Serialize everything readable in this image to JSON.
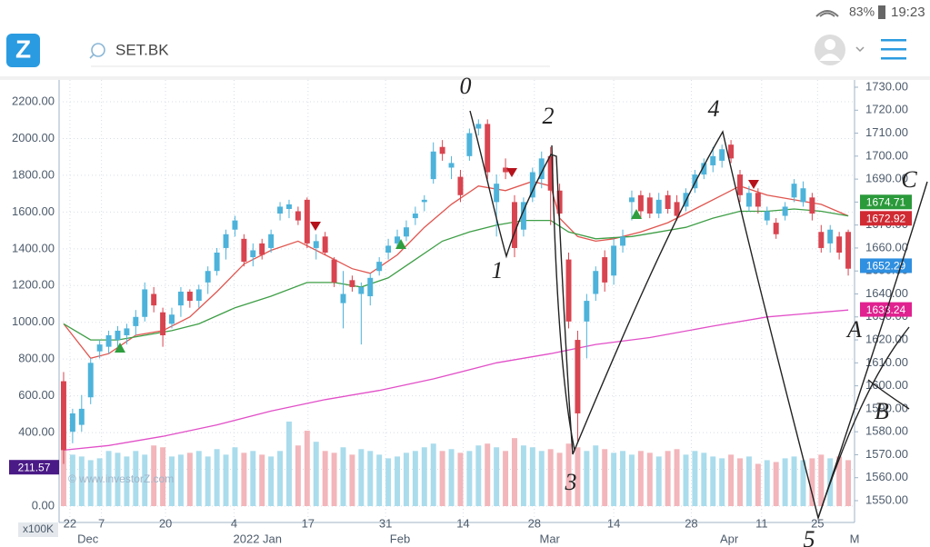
{
  "status_bar": {
    "battery": "83%",
    "time": "19:23"
  },
  "app_bar": {
    "logo": "Z",
    "search": "SET.BK"
  },
  "chart_data": {
    "type": "candlestick",
    "watermark": "© www.investorZ.com",
    "volume_unit": "x100K",
    "xlim": [
      -0.5,
      87.7
    ],
    "xticks": [
      {
        "value": 0.7,
        "label": "22"
      },
      {
        "value": 4.2,
        "label": "7"
      },
      {
        "value": 11.3,
        "label": "20"
      },
      {
        "value": 18.9,
        "label": "4"
      },
      {
        "value": 27.1,
        "label": "17"
      },
      {
        "value": 35.7,
        "label": "31"
      },
      {
        "value": 44.3,
        "label": "14"
      },
      {
        "value": 52.2,
        "label": "28"
      },
      {
        "value": 61,
        "label": "14"
      },
      {
        "value": 69.6,
        "label": "28"
      },
      {
        "value": 77.4,
        "label": "11"
      },
      {
        "value": 83.6,
        "label": "25"
      }
    ],
    "month_labels": [
      {
        "value": 2.7,
        "label": "Dec"
      },
      {
        "value": 21.5,
        "label": "2022 Jan"
      },
      {
        "value": 37.3,
        "label": "Feb"
      },
      {
        "value": 53.9,
        "label": "Mar"
      },
      {
        "value": 73.8,
        "label": "Apr"
      },
      {
        "value": 87.7,
        "label": "M"
      }
    ],
    "ylim": [
      0,
      2200
    ],
    "yticks": [
      {
        "value": 0,
        "label": "0.00"
      },
      {
        "value": 200,
        "label": "200.00"
      },
      {
        "value": 400,
        "label": "400.00"
      },
      {
        "value": 600,
        "label": "600.00"
      },
      {
        "value": 800,
        "label": "800.00"
      },
      {
        "value": 1000,
        "label": "1000.00"
      },
      {
        "value": 1200,
        "label": "1200.00"
      },
      {
        "value": 1400,
        "label": "1400.00"
      },
      {
        "value": 1600,
        "label": "1600.00"
      },
      {
        "value": 1800,
        "label": "1800.00"
      },
      {
        "value": 2000,
        "label": "2000.00"
      },
      {
        "value": 2200,
        "label": "2200.00"
      }
    ],
    "y2lim": [
      1550,
      1730
    ],
    "y2ticks": [
      {
        "value": 1550,
        "label": "1550.00"
      },
      {
        "value": 1560,
        "label": "1560.00"
      },
      {
        "value": 1570,
        "label": "1570.00"
      },
      {
        "value": 1580,
        "label": "1580.00"
      },
      {
        "value": 1590,
        "label": "1590.00"
      },
      {
        "value": 1600,
        "label": "1600.00"
      },
      {
        "value": 1610,
        "label": "1610.00"
      },
      {
        "value": 1620,
        "label": "1620.00"
      },
      {
        "value": 1630,
        "label": "1630.00"
      },
      {
        "value": 1640,
        "label": "1640.00"
      },
      {
        "value": 1650,
        "label": "1650.00"
      },
      {
        "value": 1660,
        "label": "1660.00"
      },
      {
        "value": 1670,
        "label": "1670.00"
      },
      {
        "value": 1680,
        "label": "1680.00"
      },
      {
        "value": 1690,
        "label": "1690.00"
      },
      {
        "value": 1700,
        "label": "1700.00"
      },
      {
        "value": 1710,
        "label": "1710.00"
      },
      {
        "value": 1720,
        "label": "1720.00"
      },
      {
        "value": 1730,
        "label": "1730.00"
      }
    ],
    "grid": true,
    "up_color": "#4db3da",
    "down_color": "#d8444f",
    "up_volume_color": "#aadcec",
    "down_volume_color": "#f2b6bb",
    "ohlc": [
      [
        1602,
        1606,
        1566,
        1572
      ],
      [
        1580,
        1590,
        1575,
        1588
      ],
      [
        1583,
        1596,
        1580,
        1590
      ],
      [
        1595,
        1612,
        1592,
        1610
      ],
      [
        1615,
        1620,
        1612,
        1618
      ],
      [
        1617,
        1624,
        1614,
        1622
      ],
      [
        1620,
        1626,
        1616,
        1624
      ],
      [
        1622,
        1627,
        1618,
        1625
      ],
      [
        1626,
        1633,
        1622,
        1630
      ],
      [
        1630,
        1645,
        1628,
        1642
      ],
      [
        1640,
        1643,
        1632,
        1635
      ],
      [
        1632,
        1634,
        1617,
        1622
      ],
      [
        1627,
        1634,
        1625,
        1631
      ],
      [
        1635,
        1643,
        1630,
        1641
      ],
      [
        1641,
        1642,
        1634,
        1637
      ],
      [
        1637,
        1644,
        1634,
        1642
      ],
      [
        1645,
        1652,
        1640,
        1650
      ],
      [
        1650,
        1660,
        1648,
        1658
      ],
      [
        1660,
        1668,
        1655,
        1666
      ],
      [
        1668,
        1674,
        1665,
        1672
      ],
      [
        1664,
        1666,
        1652,
        1654
      ],
      [
        1656,
        1662,
        1652,
        1659
      ],
      [
        1662,
        1664,
        1655,
        1657
      ],
      [
        1660,
        1668,
        1658,
        1666
      ],
      [
        1675,
        1680,
        1672,
        1678
      ],
      [
        1677,
        1681,
        1673,
        1679
      ],
      [
        1676,
        1678,
        1670,
        1672
      ],
      [
        1681,
        1682,
        1660,
        1662
      ],
      [
        1660,
        1666,
        1655,
        1663
      ],
      [
        1665,
        1667,
        1657,
        1658
      ],
      [
        1655,
        1656,
        1643,
        1645
      ],
      [
        1636,
        1650,
        1625,
        1640
      ],
      [
        1646,
        1648,
        1641,
        1643
      ],
      [
        1640,
        1645,
        1618,
        1643
      ],
      [
        1639,
        1649,
        1635,
        1647
      ],
      [
        1650,
        1656,
        1648,
        1654
      ],
      [
        1658,
        1664,
        1655,
        1661
      ],
      [
        1662,
        1668,
        1660,
        1665
      ],
      [
        1665,
        1672,
        1663,
        1669
      ],
      [
        1673,
        1678,
        1670,
        1675
      ],
      [
        1680,
        1683,
        1676,
        1681
      ],
      [
        1690,
        1706,
        1688,
        1702
      ],
      [
        1704,
        1707,
        1698,
        1701
      ],
      [
        1695,
        1700,
        1690,
        1697
      ],
      [
        1691,
        1694,
        1680,
        1683
      ],
      [
        1700,
        1712,
        1698,
        1710
      ],
      [
        1712,
        1716,
        1709,
        1714
      ],
      [
        1714,
        1716,
        1690,
        1693
      ],
      [
        1680,
        1692,
        1665,
        1688
      ],
      [
        1695,
        1699,
        1690,
        1693
      ],
      [
        1680,
        1683,
        1656,
        1660
      ],
      [
        1668,
        1682,
        1665,
        1680
      ],
      [
        1682,
        1695,
        1680,
        1693
      ],
      [
        1690,
        1702,
        1686,
        1699
      ],
      [
        1700,
        1704,
        1670,
        1685
      ],
      [
        1685,
        1688,
        1670,
        1675
      ],
      [
        1655,
        1658,
        1625,
        1628
      ],
      [
        1620,
        1624,
        1575,
        1588
      ],
      [
        1628,
        1640,
        1612,
        1637
      ],
      [
        1640,
        1652,
        1637,
        1650
      ],
      [
        1656,
        1659,
        1641,
        1645
      ],
      [
        1648,
        1664,
        1644,
        1661
      ],
      [
        1661,
        1668,
        1658,
        1665
      ],
      [
        1680,
        1685,
        1672,
        1682
      ],
      [
        1683,
        1685,
        1673,
        1676
      ],
      [
        1682,
        1684,
        1673,
        1675
      ],
      [
        1675,
        1684,
        1673,
        1681
      ],
      [
        1683,
        1685,
        1675,
        1677
      ],
      [
        1680,
        1683,
        1672,
        1674
      ],
      [
        1678,
        1686,
        1676,
        1684
      ],
      [
        1686,
        1694,
        1684,
        1692
      ],
      [
        1692,
        1699,
        1690,
        1697
      ],
      [
        1696,
        1704,
        1693,
        1700
      ],
      [
        1698,
        1705,
        1695,
        1703
      ],
      [
        1705,
        1707,
        1697,
        1699
      ],
      [
        1692,
        1694,
        1680,
        1683
      ],
      [
        1678,
        1687,
        1676,
        1684
      ],
      [
        1684,
        1686,
        1675,
        1678
      ],
      [
        1672,
        1678,
        1670,
        1676
      ],
      [
        1671,
        1673,
        1664,
        1666
      ],
      [
        1674,
        1680,
        1672,
        1678
      ],
      [
        1682,
        1690,
        1680,
        1688
      ],
      [
        1680,
        1689,
        1678,
        1686
      ],
      [
        1682,
        1684,
        1672,
        1675
      ],
      [
        1667,
        1670,
        1658,
        1660
      ],
      [
        1662,
        1670,
        1658,
        1668
      ],
      [
        1665,
        1667,
        1655,
        1658
      ],
      [
        1667,
        1668,
        1648,
        1651
      ]
    ],
    "volume": [
      390,
      280,
      270,
      250,
      260,
      300,
      290,
      270,
      300,
      280,
      330,
      320,
      270,
      280,
      290,
      300,
      270,
      310,
      280,
      320,
      290,
      300,
      280,
      270,
      300,
      460,
      330,
      410,
      350,
      300,
      290,
      320,
      280,
      310,
      300,
      280,
      260,
      270,
      290,
      300,
      320,
      340,
      300,
      310,
      290,
      300,
      330,
      340,
      320,
      300,
      370,
      330,
      320,
      300,
      310,
      290,
      340,
      320,
      300,
      330,
      310,
      290,
      300,
      280,
      300,
      290,
      270,
      300,
      310,
      280,
      300,
      290,
      270,
      260,
      280,
      260,
      270,
      230,
      250,
      240,
      260,
      270,
      250,
      260,
      280,
      260,
      270,
      250
    ],
    "lines": [
      {
        "color": "#e0554f",
        "axis": "y2",
        "x": [
          0,
          3,
          5,
          8,
          11,
          14,
          17,
          20,
          23,
          26,
          29,
          32,
          34,
          37,
          40,
          43,
          46,
          49,
          52,
          54,
          55,
          57,
          59,
          61,
          64,
          67,
          70,
          73,
          75,
          78,
          81,
          84,
          87
        ],
        "values": [
          1627,
          1612,
          1614,
          1622,
          1624,
          1630,
          1641,
          1653,
          1659,
          1663,
          1657,
          1651,
          1649,
          1657,
          1669,
          1679,
          1687,
          1685,
          1689,
          1687,
          1673,
          1665,
          1663,
          1664,
          1667,
          1671,
          1677,
          1683,
          1687,
          1683,
          1681,
          1679,
          1674
        ]
      },
      {
        "color": "#3e9e46",
        "axis": "y2",
        "x": [
          0,
          3,
          6,
          9,
          12,
          15,
          19,
          23,
          27,
          30,
          33,
          36,
          39,
          42,
          45,
          48,
          51,
          54,
          56,
          59,
          63,
          66,
          69,
          72,
          75,
          78,
          81,
          84,
          87
        ],
        "values": [
          1627,
          1620,
          1620,
          1622,
          1624,
          1627,
          1634,
          1639,
          1645,
          1645,
          1643,
          1647,
          1655,
          1663,
          1667,
          1670,
          1672,
          1672,
          1667,
          1664,
          1665,
          1667,
          1669,
          1673,
          1676,
          1676,
          1677,
          1676,
          1674
        ]
      },
      {
        "color": "#e24fc8",
        "axis": "y2",
        "x": [
          0,
          5,
          11,
          17,
          23,
          29,
          35,
          41,
          48,
          54,
          59,
          65,
          72,
          78,
          84,
          87
        ],
        "values": [
          1572,
          1574,
          1578,
          1583,
          1589,
          1594,
          1598,
          1603,
          1610,
          1614,
          1618,
          1621,
          1626,
          1630,
          1632,
          1633
        ]
      }
    ],
    "price_labels": [
      {
        "value": 1674.71,
        "color": "#2b9a3b"
      },
      {
        "value": 1672.92,
        "color": "#d02a33"
      },
      {
        "value": 1652.29,
        "color": "#2f8fe0"
      },
      {
        "value": 1633.24,
        "color": "#e0218f"
      }
    ],
    "volume_label": {
      "value": 211.57,
      "color": "#4a1a86"
    },
    "annotations": [
      "0",
      "1",
      "2",
      "3",
      "4",
      "5",
      "A",
      "B",
      "C"
    ]
  }
}
